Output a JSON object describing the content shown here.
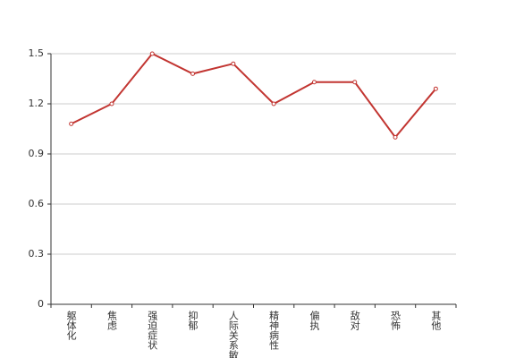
{
  "chart_data": {
    "type": "line",
    "categories": [
      "躯体化",
      "焦虑",
      "强迫症状",
      "抑郁",
      "人际关系敏感",
      "精神病性",
      "偏执",
      "敌对",
      "恐怖",
      "其他"
    ],
    "series": [
      {
        "color": "#c23531",
        "values": [
          1.08,
          1.2,
          1.5,
          1.38,
          1.44,
          1.2,
          1.33,
          1.33,
          1.0,
          1.29
        ]
      }
    ],
    "ylim": [
      0,
      1.5
    ],
    "yticks": [
      0,
      0.3,
      0.6,
      0.9,
      1.2,
      1.5
    ],
    "grid": true
  }
}
